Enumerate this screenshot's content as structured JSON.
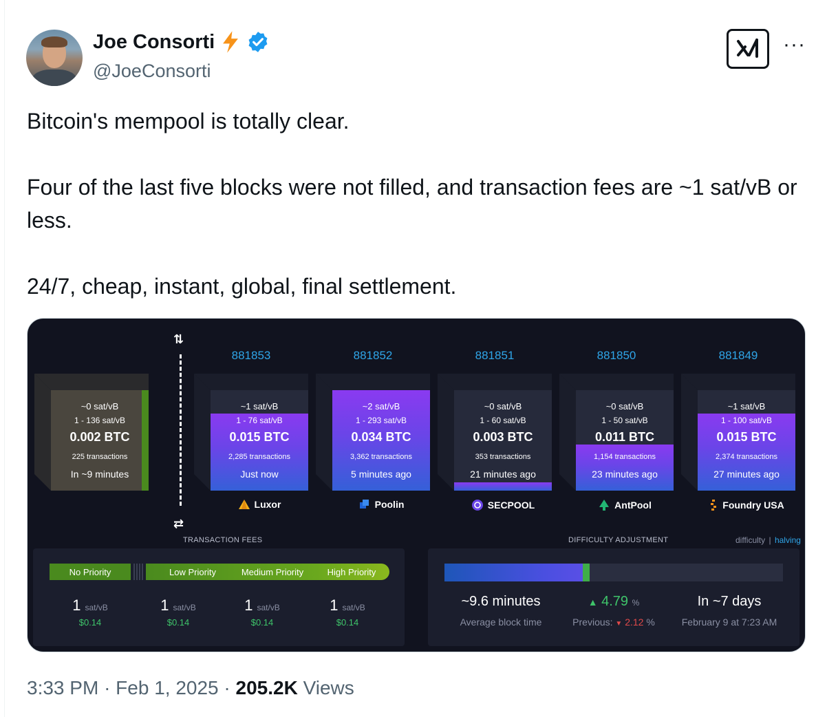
{
  "author": {
    "name": "Joe Consorti",
    "handle": "@JoeConsorti",
    "badge_icon": "lightning-bolt-icon",
    "verified_icon": "verified-badge-icon",
    "bolt_color": "#f7931a",
    "verified_color": "#1d9bf0"
  },
  "tweet": {
    "line1": "Bitcoin's mempool is totally clear.",
    "line2": "Four of the last five blocks were not filled, and transaction fees are ~1 sat/vB or less.",
    "line3": "24/7, cheap, instant, global, final settlement."
  },
  "actions": {
    "grok_icon": "grok-icon",
    "more": "···"
  },
  "media": {
    "pending_block": {
      "median_fee": "~0 sat/vB",
      "fee_range": "1 - 136 sat/vB",
      "total": "0.002 BTC",
      "transactions": "225 transactions",
      "eta": "In ~9 minutes"
    },
    "blocks": [
      {
        "height": "881853",
        "median_fee": "~1 sat/vB",
        "fee_range": "1 - 76 sat/vB",
        "total": "0.015 BTC",
        "transactions": "2,285 transactions",
        "age": "Just now",
        "pool": "Luxor",
        "fill": 0.77
      },
      {
        "height": "881852",
        "median_fee": "~2 sat/vB",
        "fee_range": "1 - 293 sat/vB",
        "total": "0.034 BTC",
        "transactions": "3,362 transactions",
        "age": "5 minutes ago",
        "pool": "Poolin",
        "fill": 1.0
      },
      {
        "height": "881851",
        "median_fee": "~0 sat/vB",
        "fee_range": "1 - 60 sat/vB",
        "total": "0.003 BTC",
        "transactions": "353 transactions",
        "age": "21 minutes ago",
        "pool": "SECPOOL",
        "fill": 0.08
      },
      {
        "height": "881850",
        "median_fee": "~0 sat/vB",
        "fee_range": "1 - 50 sat/vB",
        "total": "0.011 BTC",
        "transactions": "1,154 transactions",
        "age": "23 minutes ago",
        "pool": "AntPool",
        "fill": 0.46
      },
      {
        "height": "881849",
        "median_fee": "~1 sat/vB",
        "fee_range": "1 - 100 sat/vB",
        "total": "0.015 BTC",
        "transactions": "2,374 transactions",
        "age": "27 minutes ago",
        "pool": "Foundry USA",
        "fill": 0.77
      }
    ],
    "transaction_fees": {
      "label": "TRANSACTION FEES",
      "priorities": [
        "No Priority",
        "Low Priority",
        "Medium Priority",
        "High Priority"
      ],
      "values": [
        {
          "value": "1",
          "unit": "sat/vB",
          "usd": "$0.14"
        },
        {
          "value": "1",
          "unit": "sat/vB",
          "usd": "$0.14"
        },
        {
          "value": "1",
          "unit": "sat/vB",
          "usd": "$0.14"
        },
        {
          "value": "1",
          "unit": "sat/vB",
          "usd": "$0.14"
        }
      ]
    },
    "difficulty": {
      "label": "DIFFICULTY ADJUSTMENT",
      "tab_difficulty": "difficulty",
      "tab_separator": "|",
      "tab_halving": "halving",
      "progress": 0.42,
      "block_time": "~9.6 minutes",
      "block_time_label": "Average block time",
      "change_arrow": "▲",
      "change": "4.79",
      "change_unit": "%",
      "previous_label": "Previous:",
      "previous_arrow": "▼",
      "previous": "2.12",
      "previous_unit": "%",
      "eta": "In ~7 days",
      "eta_date": "February 9 at 7:23 AM"
    }
  },
  "footer": {
    "time": "3:33 PM",
    "sep1": "·",
    "date": "Feb 1, 2025",
    "sep2": "·",
    "views": "205.2K",
    "views_label": "Views"
  }
}
